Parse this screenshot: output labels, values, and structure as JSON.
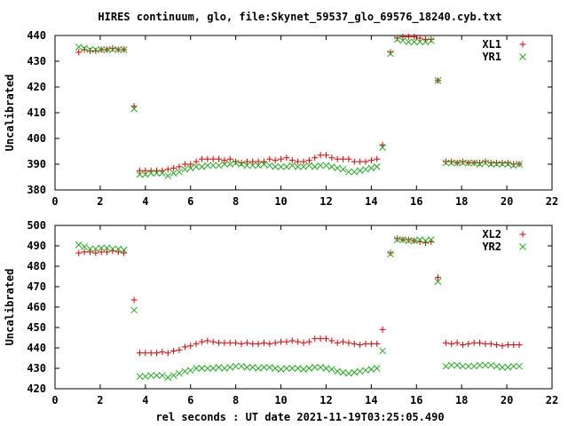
{
  "chart_data": [
    {
      "type": "scatter",
      "title": "HIRES continuum, glo, file:Skynet_59537_glo_69576_18240.cyb.txt",
      "xlabel": "",
      "ylabel": "Uncalibrated",
      "xlim": [
        0,
        22
      ],
      "ylim": [
        380,
        440
      ],
      "xticks": [
        0,
        2,
        4,
        6,
        8,
        10,
        12,
        14,
        16,
        18,
        20,
        22
      ],
      "yticks": [
        380,
        390,
        400,
        410,
        420,
        430,
        440
      ],
      "grid": false,
      "legend": "top-right",
      "series": [
        {
          "name": "XL1",
          "color": "#dd0000",
          "marker": "plus",
          "x": [
            1.05,
            1.3,
            1.55,
            1.8,
            2.05,
            2.3,
            2.55,
            2.8,
            3.05,
            3.5,
            3.75,
            4.0,
            4.25,
            4.5,
            4.75,
            5.0,
            5.25,
            5.5,
            5.75,
            6.0,
            6.25,
            6.5,
            6.75,
            7.0,
            7.25,
            7.5,
            7.75,
            8.0,
            8.25,
            8.5,
            8.75,
            9.0,
            9.25,
            9.5,
            9.75,
            10.0,
            10.25,
            10.5,
            10.75,
            11.0,
            11.25,
            11.5,
            11.75,
            12.0,
            12.25,
            12.5,
            12.75,
            13.0,
            13.25,
            13.5,
            13.75,
            14.0,
            14.25,
            14.5,
            14.85,
            15.15,
            15.4,
            15.65,
            15.9,
            16.15,
            16.4,
            16.65,
            16.95,
            17.3,
            17.55,
            17.8,
            18.05,
            18.3,
            18.55,
            18.8,
            19.05,
            19.3,
            19.55,
            19.8,
            20.05,
            20.3,
            20.55
          ],
          "y": [
            433.5,
            434.5,
            434,
            434,
            434.5,
            434.5,
            435,
            434.5,
            434.5,
            412.5,
            387.5,
            387.5,
            387.5,
            387.5,
            387.5,
            388,
            388.5,
            389,
            390,
            390,
            391,
            392,
            392,
            392,
            392,
            391.5,
            392,
            391,
            390.5,
            391,
            391,
            391,
            391,
            392,
            391.5,
            392,
            392.5,
            391.5,
            391,
            391,
            391.5,
            392.5,
            393.5,
            393.5,
            392.5,
            392,
            392,
            392,
            391,
            391,
            391,
            391.5,
            392,
            397.5,
            433.5,
            439,
            439.5,
            439.5,
            439.5,
            439,
            438.5,
            438.5,
            422.5,
            391,
            391,
            390.5,
            391,
            390.5,
            390.5,
            390.5,
            391,
            390.5,
            390.5,
            390.5,
            390.5,
            390,
            390
          ]
        },
        {
          "name": "YR1",
          "color": "#22aa22",
          "marker": "cross",
          "x": [
            1.05,
            1.3,
            1.55,
            1.8,
            2.05,
            2.3,
            2.55,
            2.8,
            3.05,
            3.5,
            3.75,
            4.0,
            4.25,
            4.5,
            4.75,
            5.0,
            5.25,
            5.5,
            5.75,
            6.0,
            6.25,
            6.5,
            6.75,
            7.0,
            7.25,
            7.5,
            7.75,
            8.0,
            8.25,
            8.5,
            8.75,
            9.0,
            9.25,
            9.5,
            9.75,
            10.0,
            10.25,
            10.5,
            10.75,
            11.0,
            11.25,
            11.5,
            11.75,
            12.0,
            12.25,
            12.5,
            12.75,
            13.0,
            13.25,
            13.5,
            13.75,
            14.0,
            14.25,
            14.5,
            14.85,
            15.15,
            15.4,
            15.65,
            15.9,
            16.15,
            16.4,
            16.65,
            16.95,
            17.3,
            17.55,
            17.8,
            18.05,
            18.3,
            18.55,
            18.8,
            19.05,
            19.3,
            19.55,
            19.8,
            20.05,
            20.3,
            20.55
          ],
          "y": [
            435.5,
            435,
            434.5,
            434.5,
            434.5,
            434.5,
            434.5,
            434.5,
            434.5,
            411.5,
            386,
            386,
            386.5,
            386.5,
            386.5,
            385.5,
            386.5,
            387,
            388,
            388.5,
            389,
            389,
            389.5,
            389.5,
            389.5,
            390,
            390,
            390.5,
            390,
            389.5,
            389.5,
            389.5,
            390,
            389.5,
            389,
            389,
            389,
            389.5,
            389,
            389,
            389.5,
            389,
            389.5,
            389.5,
            389,
            388.5,
            388,
            387,
            387,
            387.5,
            388,
            388.5,
            389,
            396.5,
            433,
            438.5,
            438,
            437.5,
            437.5,
            437.5,
            437.5,
            438,
            422.5,
            390.5,
            390.5,
            390.5,
            390.5,
            390.5,
            390.5,
            390,
            390.5,
            390,
            390,
            390,
            390,
            389.5,
            390
          ]
        }
      ]
    },
    {
      "type": "scatter",
      "title": "",
      "xlabel": "rel seconds : UT date 2021-11-19T03:25:05.490",
      "ylabel": "Uncalibrated",
      "xlim": [
        0,
        22
      ],
      "ylim": [
        420,
        500
      ],
      "xticks": [
        0,
        2,
        4,
        6,
        8,
        10,
        12,
        14,
        16,
        18,
        20,
        22
      ],
      "yticks": [
        420,
        430,
        440,
        450,
        460,
        470,
        480,
        490,
        500
      ],
      "grid": false,
      "legend": "top-right",
      "series": [
        {
          "name": "XL2",
          "color": "#dd0000",
          "marker": "plus",
          "x": [
            1.05,
            1.3,
            1.55,
            1.8,
            2.05,
            2.3,
            2.55,
            2.8,
            3.05,
            3.5,
            3.75,
            4.0,
            4.25,
            4.5,
            4.75,
            5.0,
            5.25,
            5.5,
            5.75,
            6.0,
            6.25,
            6.5,
            6.75,
            7.0,
            7.25,
            7.5,
            7.75,
            8.0,
            8.25,
            8.5,
            8.75,
            9.0,
            9.25,
            9.5,
            9.75,
            10.0,
            10.25,
            10.5,
            10.75,
            11.0,
            11.25,
            11.5,
            11.75,
            12.0,
            12.25,
            12.5,
            12.75,
            13.0,
            13.25,
            13.5,
            13.75,
            14.0,
            14.25,
            14.5,
            14.85,
            15.15,
            15.4,
            15.65,
            15.9,
            16.15,
            16.4,
            16.65,
            16.95,
            17.3,
            17.55,
            17.8,
            18.05,
            18.3,
            18.55,
            18.8,
            19.05,
            19.3,
            19.55,
            19.8,
            20.05,
            20.3,
            20.55
          ],
          "y": [
            486.5,
            487,
            487,
            486.5,
            487,
            487,
            487.5,
            487,
            486.5,
            463.5,
            437.5,
            437.5,
            437.5,
            437.5,
            438,
            437.5,
            438.5,
            439,
            440.5,
            441,
            442,
            443,
            443.5,
            443,
            442.5,
            442.5,
            442.5,
            442.5,
            442,
            442.5,
            442,
            442,
            442.5,
            442,
            442.5,
            443,
            443,
            443.5,
            443,
            442.5,
            443,
            444.5,
            444.5,
            444.5,
            443.5,
            442.5,
            443,
            442.5,
            442,
            441.5,
            442,
            442,
            442,
            449,
            486.5,
            493.5,
            493,
            493,
            492.5,
            492,
            491.5,
            492,
            474.5,
            442.5,
            442,
            442.5,
            441.5,
            442,
            442.5,
            442.5,
            442,
            442,
            441.5,
            441,
            441.5,
            441.5,
            441.5
          ]
        },
        {
          "name": "YR2",
          "color": "#22aa22",
          "marker": "cross",
          "x": [
            1.05,
            1.3,
            1.55,
            1.8,
            2.05,
            2.3,
            2.55,
            2.8,
            3.05,
            3.5,
            3.75,
            4.0,
            4.25,
            4.5,
            4.75,
            5.0,
            5.25,
            5.5,
            5.75,
            6.0,
            6.25,
            6.5,
            6.75,
            7.0,
            7.25,
            7.5,
            7.75,
            8.0,
            8.25,
            8.5,
            8.75,
            9.0,
            9.25,
            9.5,
            9.75,
            10.0,
            10.25,
            10.5,
            10.75,
            11.0,
            11.25,
            11.5,
            11.75,
            12.0,
            12.25,
            12.5,
            12.75,
            13.0,
            13.25,
            13.5,
            13.75,
            14.0,
            14.25,
            14.5,
            14.85,
            15.15,
            15.4,
            15.65,
            15.9,
            16.15,
            16.4,
            16.65,
            16.95,
            17.3,
            17.55,
            17.8,
            18.05,
            18.3,
            18.55,
            18.8,
            19.05,
            19.3,
            19.55,
            19.8,
            20.05,
            20.3,
            20.55
          ],
          "y": [
            490.5,
            489.5,
            488.5,
            488.5,
            489,
            489,
            488.5,
            488.5,
            488,
            458.5,
            426,
            426,
            426.5,
            426.5,
            426.5,
            425.5,
            426.5,
            427.5,
            428.5,
            429,
            430,
            430,
            430,
            430,
            430.5,
            430,
            430.5,
            431,
            431,
            430.5,
            430.5,
            430,
            430.5,
            430.5,
            430,
            429.5,
            430,
            430,
            430,
            429.5,
            430,
            430.5,
            430.5,
            430,
            429.5,
            428.5,
            428,
            427.5,
            428,
            428.5,
            429,
            429.5,
            430,
            438.5,
            486,
            493,
            493,
            492.5,
            492.5,
            493,
            492.5,
            493,
            472.5,
            431,
            431.5,
            431.5,
            431,
            431,
            431,
            431.5,
            431.5,
            431.5,
            431,
            430.5,
            430.5,
            431,
            431
          ]
        }
      ]
    }
  ]
}
